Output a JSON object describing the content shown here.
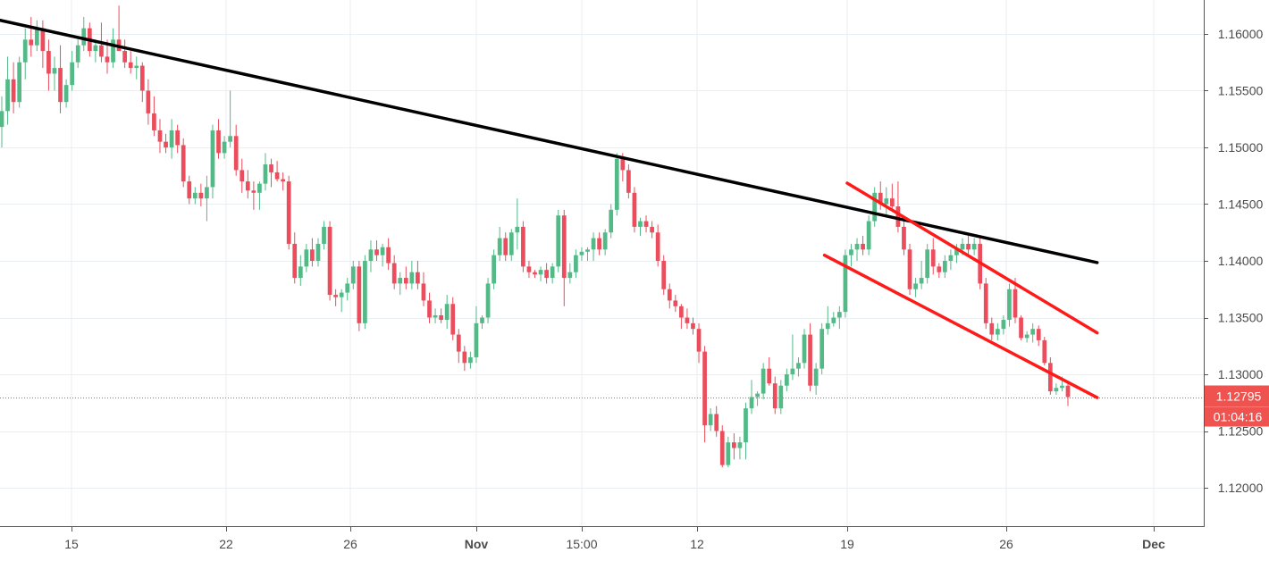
{
  "chart_data": {
    "type": "candlestick",
    "y_axis": {
      "ticks": [
        1.12,
        1.125,
        1.13,
        1.135,
        1.14,
        1.145,
        1.15,
        1.155,
        1.16
      ],
      "tick_labels": [
        "1.12000",
        "1.12500",
        "1.13000",
        "1.13500",
        "1.14000",
        "1.14500",
        "1.15000",
        "1.15500",
        "1.16000"
      ],
      "range": [
        1.1168,
        1.1629
      ]
    },
    "x_axis": {
      "tick_labels": [
        "15",
        "22",
        "26",
        "Nov",
        "15:00",
        "12",
        "19",
        "26",
        "Dec"
      ],
      "bold_labels": [
        "Nov",
        "Dec"
      ]
    },
    "last_price": {
      "value": 1.12795,
      "label": "1.12795",
      "countdown": "01:04:16",
      "color": "#ef5350"
    },
    "colors": {
      "up": "#53b987",
      "down": "#eb4d5c",
      "grid": "#e9eef2",
      "axis_text": "#4a4a4a"
    },
    "grid": true,
    "candles": [
      [
        1.1518,
        1.1545,
        1.15,
        1.1532
      ],
      [
        1.1532,
        1.158,
        1.152,
        1.156
      ],
      [
        1.156,
        1.1575,
        1.153,
        1.154
      ],
      [
        1.154,
        1.158,
        1.1535,
        1.1575
      ],
      [
        1.1575,
        1.1605,
        1.156,
        1.1595
      ],
      [
        1.1595,
        1.1615,
        1.158,
        1.159
      ],
      [
        1.159,
        1.1612,
        1.1585,
        1.1605
      ],
      [
        1.1605,
        1.1612,
        1.157,
        1.1585
      ],
      [
        1.1585,
        1.1595,
        1.155,
        1.1565
      ],
      [
        1.1565,
        1.158,
        1.155,
        1.157
      ],
      [
        1.157,
        1.159,
        1.153,
        1.154
      ],
      [
        1.154,
        1.156,
        1.1535,
        1.1555
      ],
      [
        1.1555,
        1.1585,
        1.155,
        1.1575
      ],
      [
        1.1575,
        1.1595,
        1.157,
        1.159
      ],
      [
        1.159,
        1.1615,
        1.1585,
        1.1605
      ],
      [
        1.1605,
        1.161,
        1.158,
        1.1585
      ],
      [
        1.1585,
        1.1595,
        1.1575,
        1.159
      ],
      [
        1.159,
        1.161,
        1.1575,
        1.158
      ],
      [
        1.158,
        1.1595,
        1.1565,
        1.1575
      ],
      [
        1.1575,
        1.1605,
        1.157,
        1.1595
      ],
      [
        1.1595,
        1.1625,
        1.1585,
        1.1585
      ],
      [
        1.1585,
        1.1595,
        1.157,
        1.1575
      ],
      [
        1.1575,
        1.1585,
        1.1565,
        1.157
      ],
      [
        1.157,
        1.158,
        1.156,
        1.1572
      ],
      [
        1.1572,
        1.1575,
        1.154,
        1.155
      ],
      [
        1.155,
        1.156,
        1.152,
        1.153
      ],
      [
        1.153,
        1.1545,
        1.151,
        1.1515
      ],
      [
        1.1515,
        1.1525,
        1.1495,
        1.1505
      ],
      [
        1.1505,
        1.1512,
        1.1495,
        1.15
      ],
      [
        1.15,
        1.1525,
        1.149,
        1.1515
      ],
      [
        1.1515,
        1.152,
        1.1495,
        1.1502
      ],
      [
        1.1502,
        1.1508,
        1.1465,
        1.147
      ],
      [
        1.147,
        1.1475,
        1.145,
        1.1455
      ],
      [
        1.1455,
        1.1465,
        1.145,
        1.146
      ],
      [
        1.146,
        1.1468,
        1.1448,
        1.1455
      ],
      [
        1.1455,
        1.1475,
        1.1435,
        1.1465
      ],
      [
        1.1465,
        1.152,
        1.1455,
        1.1515
      ],
      [
        1.1515,
        1.1525,
        1.149,
        1.1495
      ],
      [
        1.1495,
        1.151,
        1.149,
        1.1505
      ],
      [
        1.1505,
        1.155,
        1.15,
        1.151
      ],
      [
        1.151,
        1.152,
        1.1475,
        1.148
      ],
      [
        1.148,
        1.149,
        1.146,
        1.147
      ],
      [
        1.147,
        1.148,
        1.1455,
        1.1462
      ],
      [
        1.1462,
        1.147,
        1.1445,
        1.146
      ],
      [
        1.146,
        1.147,
        1.1445,
        1.1468
      ],
      [
        1.1468,
        1.1495,
        1.1462,
        1.1485
      ],
      [
        1.1485,
        1.149,
        1.1465,
        1.1478
      ],
      [
        1.1478,
        1.1488,
        1.147,
        1.1472
      ],
      [
        1.1472,
        1.1478,
        1.1462,
        1.147
      ],
      [
        1.147,
        1.1475,
        1.141,
        1.1415
      ],
      [
        1.1415,
        1.1425,
        1.138,
        1.1385
      ],
      [
        1.1385,
        1.1405,
        1.1378,
        1.1395
      ],
      [
        1.1395,
        1.1415,
        1.139,
        1.141
      ],
      [
        1.141,
        1.142,
        1.1395,
        1.14
      ],
      [
        1.14,
        1.142,
        1.1395,
        1.1415
      ],
      [
        1.1415,
        1.1435,
        1.141,
        1.143
      ],
      [
        1.143,
        1.1435,
        1.1365,
        1.137
      ],
      [
        1.137,
        1.1375,
        1.136,
        1.1368
      ],
      [
        1.1368,
        1.1375,
        1.1355,
        1.1372
      ],
      [
        1.1372,
        1.1385,
        1.1365,
        1.138
      ],
      [
        1.138,
        1.14,
        1.1375,
        1.1395
      ],
      [
        1.1395,
        1.14,
        1.1338,
        1.1345
      ],
      [
        1.1345,
        1.1405,
        1.134,
        1.14
      ],
      [
        1.14,
        1.1418,
        1.139,
        1.141
      ],
      [
        1.141,
        1.1418,
        1.14,
        1.1405
      ],
      [
        1.1405,
        1.1415,
        1.1395,
        1.1412
      ],
      [
        1.1412,
        1.142,
        1.1392,
        1.1398
      ],
      [
        1.1398,
        1.1405,
        1.1375,
        1.138
      ],
      [
        1.138,
        1.139,
        1.137,
        1.1385
      ],
      [
        1.1385,
        1.1395,
        1.1375,
        1.138
      ],
      [
        1.138,
        1.14,
        1.1375,
        1.139
      ],
      [
        1.139,
        1.14,
        1.1375,
        1.138
      ],
      [
        1.138,
        1.139,
        1.136,
        1.1365
      ],
      [
        1.1365,
        1.1372,
        1.1345,
        1.135
      ],
      [
        1.135,
        1.1358,
        1.1345,
        1.1352
      ],
      [
        1.1352,
        1.1358,
        1.1345,
        1.1348
      ],
      [
        1.1348,
        1.137,
        1.134,
        1.1362
      ],
      [
        1.1362,
        1.1368,
        1.133,
        1.1335
      ],
      [
        1.1335,
        1.134,
        1.131,
        1.132
      ],
      [
        1.132,
        1.1325,
        1.1303,
        1.131
      ],
      [
        1.131,
        1.132,
        1.1305,
        1.1315
      ],
      [
        1.1315,
        1.136,
        1.131,
        1.1345
      ],
      [
        1.1345,
        1.1352,
        1.134,
        1.135
      ],
      [
        1.135,
        1.1385,
        1.1345,
        1.138
      ],
      [
        1.138,
        1.141,
        1.1375,
        1.1405
      ],
      [
        1.1405,
        1.143,
        1.14,
        1.142
      ],
      [
        1.142,
        1.1425,
        1.14,
        1.1405
      ],
      [
        1.1405,
        1.1428,
        1.14,
        1.1425
      ],
      [
        1.1425,
        1.1455,
        1.141,
        1.143
      ],
      [
        1.143,
        1.1435,
        1.139,
        1.1395
      ],
      [
        1.1395,
        1.14,
        1.1385,
        1.139
      ],
      [
        1.139,
        1.1392,
        1.1385,
        1.1388
      ],
      [
        1.1388,
        1.1395,
        1.1382,
        1.1392
      ],
      [
        1.1392,
        1.1398,
        1.138,
        1.1385
      ],
      [
        1.1385,
        1.1398,
        1.138,
        1.1395
      ],
      [
        1.1395,
        1.1445,
        1.139,
        1.144
      ],
      [
        1.144,
        1.1445,
        1.136,
        1.1385
      ],
      [
        1.1385,
        1.1398,
        1.138,
        1.139
      ],
      [
        1.139,
        1.141,
        1.1385,
        1.1405
      ],
      [
        1.1405,
        1.1412,
        1.14,
        1.1408
      ],
      [
        1.1408,
        1.1412,
        1.14,
        1.141
      ],
      [
        1.141,
        1.1425,
        1.14,
        1.142
      ],
      [
        1.142,
        1.1425,
        1.1405,
        1.141
      ],
      [
        1.141,
        1.1428,
        1.1405,
        1.1425
      ],
      [
        1.1425,
        1.145,
        1.142,
        1.1445
      ],
      [
        1.1445,
        1.1495,
        1.144,
        1.149
      ],
      [
        1.149,
        1.1495,
        1.147,
        1.148
      ],
      [
        1.148,
        1.1485,
        1.1455,
        1.146
      ],
      [
        1.146,
        1.1465,
        1.1425,
        1.143
      ],
      [
        1.143,
        1.1438,
        1.1422,
        1.1435
      ],
      [
        1.1435,
        1.144,
        1.1425,
        1.143
      ],
      [
        1.143,
        1.1435,
        1.142,
        1.1425
      ],
      [
        1.1425,
        1.1432,
        1.1395,
        1.14
      ],
      [
        1.14,
        1.1405,
        1.137,
        1.1375
      ],
      [
        1.1375,
        1.138,
        1.1358,
        1.1365
      ],
      [
        1.1365,
        1.137,
        1.1355,
        1.136
      ],
      [
        1.136,
        1.1362,
        1.134,
        1.135
      ],
      [
        1.135,
        1.1358,
        1.134,
        1.1345
      ],
      [
        1.1345,
        1.135,
        1.1335,
        1.134
      ],
      [
        1.134,
        1.1345,
        1.131,
        1.132
      ],
      [
        1.132,
        1.1325,
        1.124,
        1.1255
      ],
      [
        1.1255,
        1.127,
        1.125,
        1.1265
      ],
      [
        1.1265,
        1.1272,
        1.1245,
        1.125
      ],
      [
        1.125,
        1.1255,
        1.1218,
        1.122
      ],
      [
        1.122,
        1.1245,
        1.1218,
        1.124
      ],
      [
        1.124,
        1.1248,
        1.1225,
        1.1235
      ],
      [
        1.1235,
        1.1245,
        1.1225,
        1.124
      ],
      [
        1.124,
        1.1275,
        1.1225,
        1.127
      ],
      [
        1.127,
        1.1295,
        1.1265,
        1.128
      ],
      [
        1.128,
        1.1285,
        1.1272,
        1.1283
      ],
      [
        1.1283,
        1.131,
        1.1278,
        1.1305
      ],
      [
        1.1305,
        1.1315,
        1.129,
        1.1292
      ],
      [
        1.1292,
        1.1298,
        1.1265,
        1.127
      ],
      [
        1.127,
        1.1295,
        1.1265,
        1.129
      ],
      [
        1.129,
        1.1305,
        1.1285,
        1.13
      ],
      [
        1.13,
        1.1335,
        1.1295,
        1.1305
      ],
      [
        1.1305,
        1.1315,
        1.1298,
        1.131
      ],
      [
        1.131,
        1.134,
        1.1305,
        1.1335
      ],
      [
        1.1335,
        1.1345,
        1.1285,
        1.129
      ],
      [
        1.129,
        1.131,
        1.1282,
        1.1305
      ],
      [
        1.1305,
        1.1345,
        1.13,
        1.134
      ],
      [
        1.134,
        1.136,
        1.1335,
        1.1345
      ],
      [
        1.1345,
        1.1355,
        1.1342,
        1.135
      ],
      [
        1.135,
        1.136,
        1.134,
        1.1355
      ],
      [
        1.1355,
        1.141,
        1.135,
        1.1405
      ],
      [
        1.1405,
        1.1415,
        1.1395,
        1.141
      ],
      [
        1.141,
        1.142,
        1.14,
        1.1415
      ],
      [
        1.1415,
        1.1422,
        1.1405,
        1.141
      ],
      [
        1.141,
        1.144,
        1.1405,
        1.1435
      ],
      [
        1.1435,
        1.1465,
        1.143,
        1.146
      ],
      [
        1.146,
        1.147,
        1.1445,
        1.145
      ],
      [
        1.145,
        1.1465,
        1.144,
        1.1455
      ],
      [
        1.1455,
        1.1468,
        1.1445,
        1.1448
      ],
      [
        1.1448,
        1.147,
        1.1425,
        1.143
      ],
      [
        1.143,
        1.1438,
        1.1405,
        1.141
      ],
      [
        1.141,
        1.1415,
        1.137,
        1.1375
      ],
      [
        1.1375,
        1.1385,
        1.1368,
        1.138
      ],
      [
        1.138,
        1.14,
        1.1375,
        1.1385
      ],
      [
        1.1385,
        1.1415,
        1.138,
        1.141
      ],
      [
        1.141,
        1.142,
        1.1388,
        1.1395
      ],
      [
        1.1395,
        1.1398,
        1.1385,
        1.139
      ],
      [
        1.139,
        1.1405,
        1.1385,
        1.14
      ],
      [
        1.14,
        1.141,
        1.1392,
        1.1405
      ],
      [
        1.1405,
        1.1415,
        1.1398,
        1.141
      ],
      [
        1.141,
        1.142,
        1.1405,
        1.1415
      ],
      [
        1.1415,
        1.1422,
        1.1405,
        1.141
      ],
      [
        1.141,
        1.142,
        1.1405,
        1.1415
      ],
      [
        1.1415,
        1.1422,
        1.1375,
        1.138
      ],
      [
        1.138,
        1.1385,
        1.134,
        1.1345
      ],
      [
        1.1345,
        1.135,
        1.133,
        1.1335
      ],
      [
        1.1335,
        1.1345,
        1.133,
        1.134
      ],
      [
        1.134,
        1.1352,
        1.1335,
        1.1348
      ],
      [
        1.1348,
        1.138,
        1.1342,
        1.1375
      ],
      [
        1.1375,
        1.1385,
        1.1345,
        1.135
      ],
      [
        1.135,
        1.1352,
        1.133,
        1.1332
      ],
      [
        1.1332,
        1.1338,
        1.1328,
        1.1335
      ],
      [
        1.1335,
        1.1345,
        1.1328,
        1.134
      ],
      [
        1.134,
        1.1343,
        1.1325,
        1.133
      ],
      [
        1.133,
        1.1333,
        1.1308,
        1.131
      ],
      [
        1.131,
        1.1315,
        1.1282,
        1.1285
      ],
      [
        1.1285,
        1.1292,
        1.1282,
        1.1288
      ],
      [
        1.1288,
        1.1298,
        1.1285,
        1.129
      ],
      [
        1.129,
        1.1292,
        1.1272,
        1.128
      ]
    ],
    "drawn_lines": [
      {
        "name": "black-trendline",
        "color": "#000000",
        "points": [
          [
            "2018-10-09",
            1.16285
          ],
          [
            "2018-11-30",
            1.13985
          ]
        ]
      },
      {
        "name": "red-channel-upper",
        "color": "#ff1a1a",
        "points": [
          [
            "2018-11-19",
            1.14685
          ],
          [
            "2018-11-30",
            1.13365
          ]
        ]
      },
      {
        "name": "red-channel-lower",
        "color": "#ff1a1a",
        "points": [
          [
            "2018-11-18",
            1.1405
          ],
          [
            "2018-11-30",
            1.12795
          ]
        ]
      }
    ]
  }
}
